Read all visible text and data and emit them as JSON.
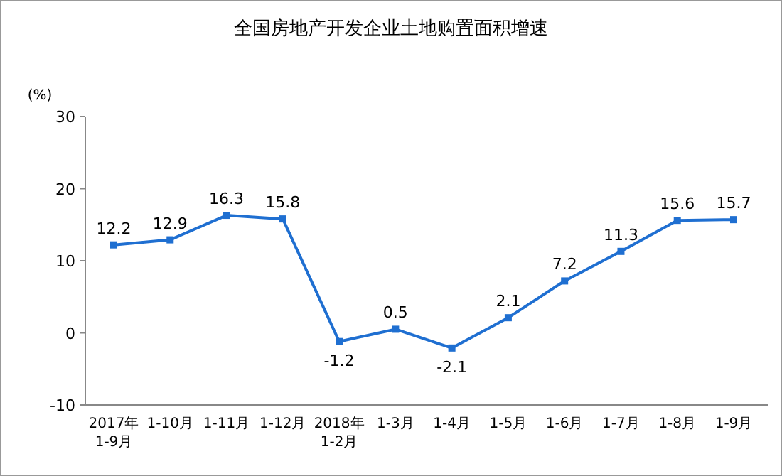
{
  "chart_data": {
    "type": "line",
    "title": "全国房地产开发企业土地购置面积增速",
    "ylabel": "(%)",
    "categories": [
      "2017年\n1-9月",
      "1-10月",
      "1-11月",
      "1-12月",
      "2018年\n1-2月",
      "1-3月",
      "1-4月",
      "1-5月",
      "1-6月",
      "1-7月",
      "1-8月",
      "1-9月"
    ],
    "series": [
      {
        "color": "#1f6fd1",
        "values": [
          12.2,
          12.9,
          16.3,
          15.8,
          -1.2,
          0.5,
          -2.1,
          2.1,
          7.2,
          11.3,
          15.6,
          15.7
        ]
      }
    ],
    "ylim": [
      -10,
      30
    ],
    "yticks": [
      -10,
      0,
      10,
      20,
      30
    ],
    "grid": false,
    "marker": "square",
    "line_style": "solid",
    "data_labels": true
  }
}
